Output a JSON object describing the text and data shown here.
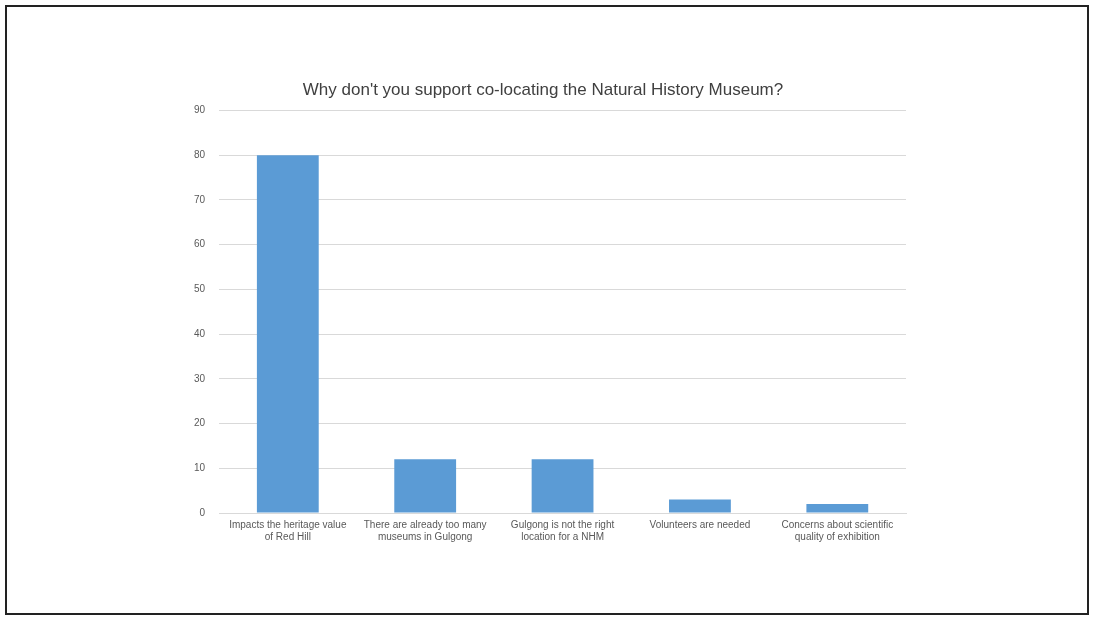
{
  "chart_data": {
    "type": "bar",
    "title": "Why don't you support co-locating the Natural History Museum?",
    "categories": [
      "Impacts the heritage value of Red Hill",
      "There are already too many museums in Gulgong",
      "Gulgong is not the right location for a NHM",
      "Volunteers are needed",
      "Concerns about scientific quality of exhibition"
    ],
    "values": [
      80,
      12,
      12,
      3,
      2
    ],
    "color": "#5b9bd5",
    "ylim": [
      0,
      90
    ],
    "yticks": [
      0,
      10,
      20,
      30,
      40,
      50,
      60,
      70,
      80,
      90
    ],
    "grid": "y",
    "legend": false
  }
}
